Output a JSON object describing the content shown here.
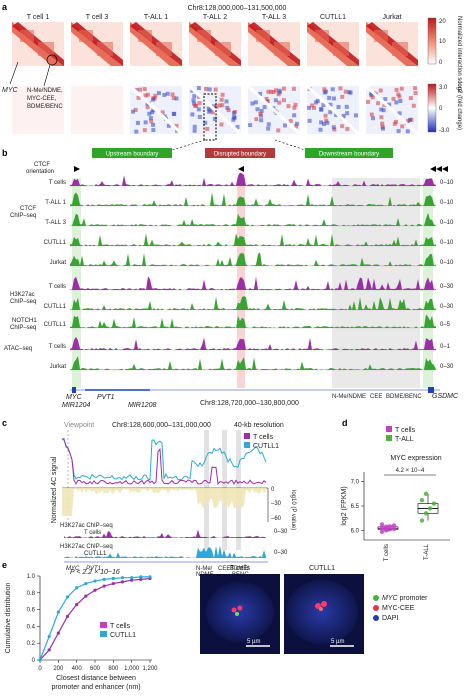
{
  "panel_a": {
    "letter": "a",
    "coord": "Chr8:128,000,000–131,500,000",
    "samples": [
      "T cell 1",
      "T cell 3",
      "T-ALL 1",
      "T-ALL 2",
      "T-ALL 3",
      "CUTLL1",
      "Jurkat"
    ],
    "colorbar_top_label": "Normalized interaction score",
    "colorbar_top_ticks": [
      "20",
      "10",
      "0"
    ],
    "colorbar_bottom_label": "log2 (fold change)",
    "colorbar_bottom_ticks": [
      "3.0",
      "0",
      "-3.0"
    ],
    "myc_label": "MYC",
    "enh_label": "N-Me/NDME, MYC-CEE, BDME/BENC"
  },
  "panel_b": {
    "letter": "b",
    "boundaries": [
      "Upstream boundary",
      "Disrupted boundary",
      "Downstream boundary"
    ],
    "ctcf_orientation": "CTCF orientation",
    "groups": [
      "CTCF ChIP–seq",
      "H3K27ac ChIP–seq",
      "NOTCH1 ChIP–seq",
      "ATAC–seq"
    ],
    "tracks": [
      {
        "name": "T cells",
        "group": "CTCF",
        "color": "#9b2fa8",
        "range": "0–10"
      },
      {
        "name": "T-ALL 1",
        "group": "CTCF",
        "color": "#3aa335",
        "range": "0–10"
      },
      {
        "name": "T-ALL 3",
        "group": "CTCF",
        "color": "#3aa335",
        "range": "0–10"
      },
      {
        "name": "CUTLL1",
        "group": "CTCF",
        "color": "#3aa335",
        "range": "0–10"
      },
      {
        "name": "Jurkat",
        "group": "CTCF",
        "color": "#3aa335",
        "range": "0–10"
      },
      {
        "name": "T cells",
        "group": "H3K27ac",
        "color": "#9b2fa8",
        "range": "0–30"
      },
      {
        "name": "CUTLL1",
        "group": "H3K27ac",
        "color": "#3aa335",
        "range": "0–30"
      },
      {
        "name": "CUTLL1",
        "group": "NOTCH1",
        "color": "#3aa335",
        "range": "0–5"
      },
      {
        "name": "T cells",
        "group": "ATAC",
        "color": "#9b2fa8",
        "range": "0–1"
      },
      {
        "name": "Jurkat",
        "group": "ATAC",
        "color": "#3aa335",
        "range": "0–30"
      }
    ],
    "genes_left": [
      "MYC",
      "MIR1204",
      "PVT1",
      "MIR1208"
    ],
    "coord": "Chr8:128,720,000–130,800,000",
    "genes_right": [
      "N-Me/NDME",
      "CEE",
      "BDME/BENC",
      "GSDMC"
    ]
  },
  "panel_c": {
    "letter": "c",
    "viewpoint": "Viewpoint",
    "coord": "Chr8:128,600,000–131,000,000",
    "resolution": "40-kb resolution",
    "legend": [
      "T cells",
      "CUTLL1"
    ],
    "ylabel": "Normalized 4C signal",
    "y2label": "log10 (P value)",
    "y2ticks": [
      "0",
      "–30",
      "–60"
    ],
    "tracks": [
      "H3K27ac ChIP–seq T cells",
      "H3K27ac ChIP–seq CUTLL1"
    ],
    "track_range": "0–30",
    "genes": [
      "MYC",
      "PVT1",
      "N-Me/NDME",
      "CEE",
      "BDME/BENC"
    ]
  },
  "panel_d": {
    "letter": "d",
    "legend": [
      "T cells",
      "T-ALL"
    ],
    "title": "MYC expression",
    "pvalue": "4.2 × 10−4",
    "ylabel": "log2 (FPKM)",
    "yticks": [
      "7.0",
      "6.5",
      "6.0"
    ],
    "categories": [
      "T cells",
      "T-ALL"
    ]
  },
  "panel_e": {
    "letter": "e",
    "pvalue": "P < 2.2 × 10−16",
    "ylabel": "Cumulative distribution",
    "xlabel": "Closest distance between promoter and enhancer (nm)",
    "legend": [
      "T cells",
      "CUTLL1"
    ],
    "xticks": [
      "0",
      "200",
      "400",
      "600",
      "800",
      "1,000",
      "1,200"
    ],
    "yticks": [
      "0",
      "0.2",
      "0.4",
      "0.6",
      "0.8",
      "1.0"
    ],
    "image_titles": [
      "T cells",
      "CUTLL1"
    ],
    "scale": "5 µm",
    "image_legend": [
      "MYC promoter",
      "MYC-CEE",
      "DAPI"
    ]
  },
  "chart_data": [
    {
      "type": "line",
      "title": "",
      "xlabel": "Closest distance between promoter and enhancer (nm)",
      "ylabel": "Cumulative distribution",
      "ylim": [
        0,
        1.0
      ],
      "x": [
        0,
        100,
        200,
        300,
        400,
        500,
        600,
        700,
        800,
        900,
        1000,
        1100,
        1200
      ],
      "series": [
        {
          "name": "T cells",
          "values": [
            0.0,
            0.12,
            0.32,
            0.52,
            0.66,
            0.76,
            0.83,
            0.88,
            0.91,
            0.93,
            0.95,
            0.96,
            0.97
          ]
        },
        {
          "name": "CUTLL1",
          "values": [
            0.0,
            0.28,
            0.57,
            0.75,
            0.86,
            0.91,
            0.94,
            0.96,
            0.97,
            0.98,
            0.98,
            0.99,
            0.99
          ]
        }
      ]
    },
    {
      "type": "scatter",
      "title": "MYC expression",
      "ylabel": "log2 (FPKM)",
      "categories": [
        "T cells",
        "T-ALL"
      ],
      "series": [
        {
          "name": "T cells",
          "values": [
            5.97,
            6.0,
            6.02,
            6.03,
            6.05,
            6.07,
            6.08,
            6.1,
            6.12,
            6.03
          ]
        },
        {
          "name": "T-ALL",
          "values": [
            6.2,
            6.35,
            6.45,
            6.55,
            6.62,
            6.75
          ]
        }
      ]
    }
  ]
}
